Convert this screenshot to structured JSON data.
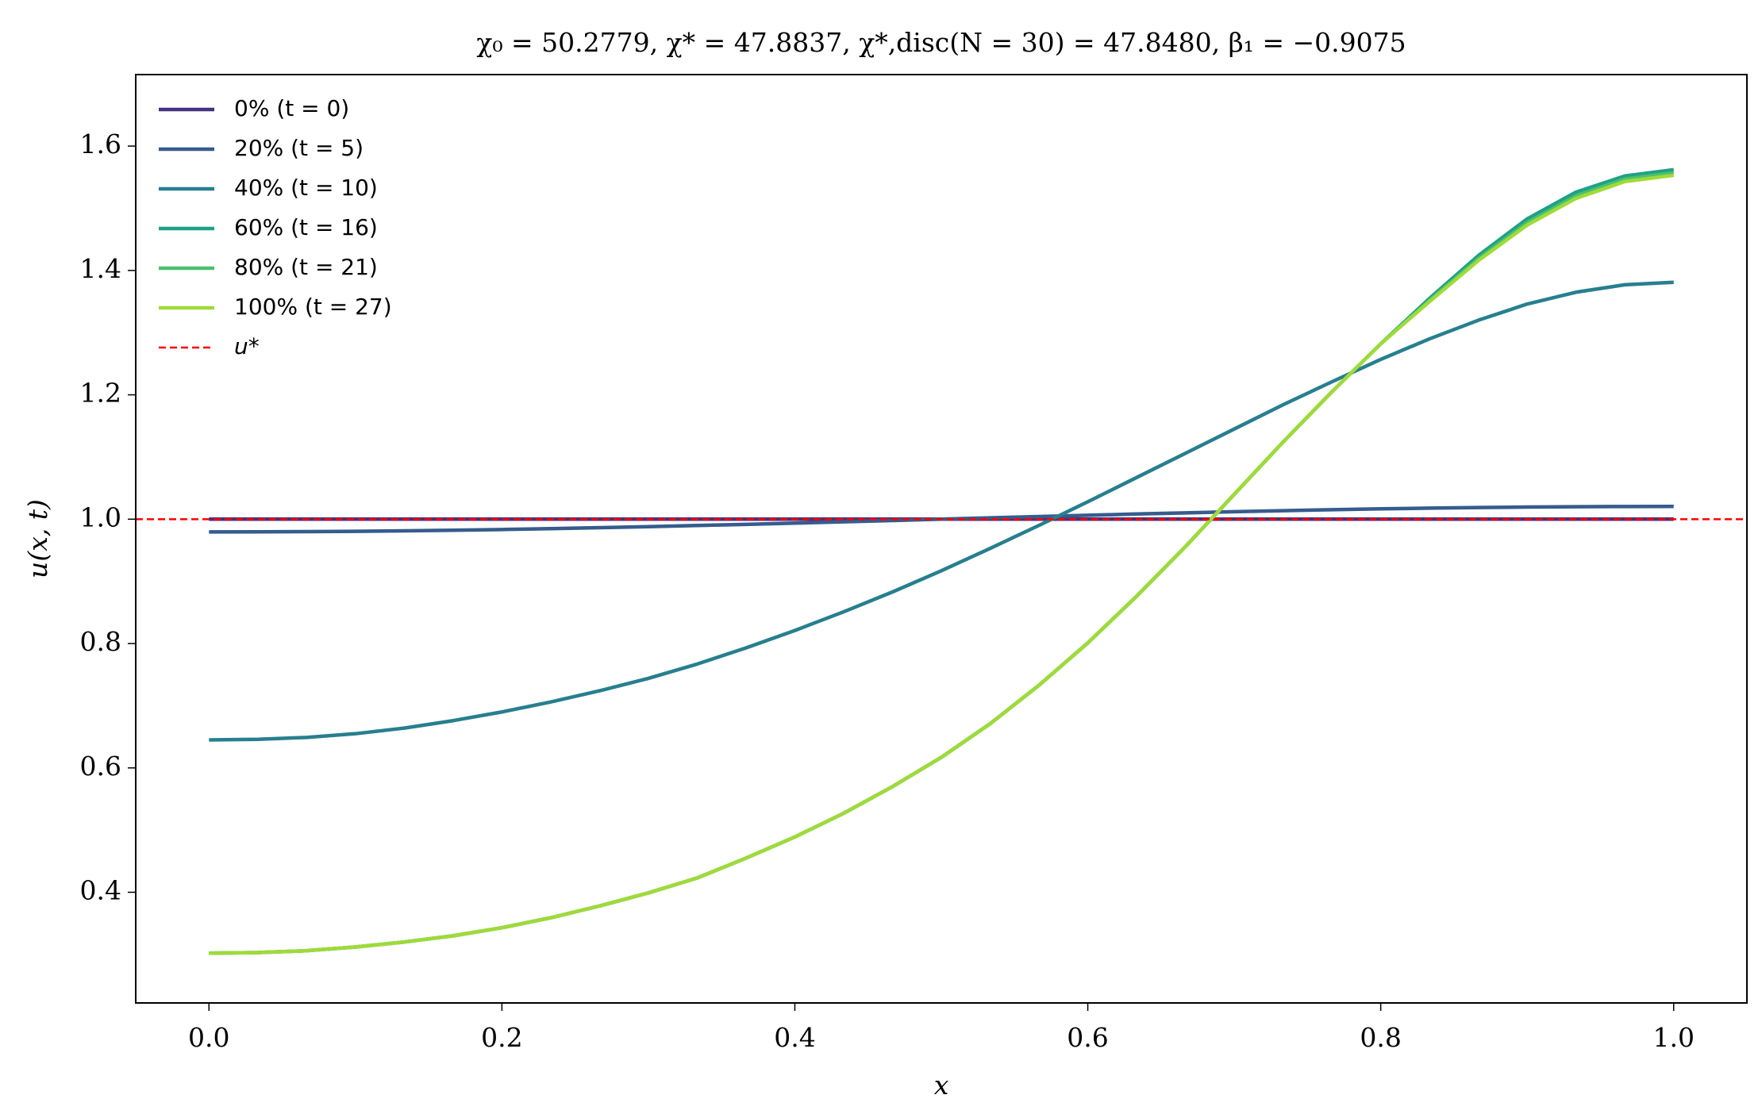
{
  "chart_data": {
    "type": "line",
    "title": "χ₀ = 50.2779,  χ* = 47.8837,  χ*,disc(N = 30) = 47.8480,  β₁ = −0.9075",
    "xlabel": "x",
    "ylabel": "u(x, t)",
    "x": [
      0,
      0.0333,
      0.0667,
      0.1,
      0.1333,
      0.1667,
      0.2,
      0.2333,
      0.2667,
      0.3,
      0.3333,
      0.3667,
      0.4,
      0.4333,
      0.4667,
      0.5,
      0.5333,
      0.5667,
      0.6,
      0.6333,
      0.6667,
      0.7,
      0.7333,
      0.7667,
      0.8,
      0.8333,
      0.8667,
      0.9,
      0.9333,
      0.9667,
      1
    ],
    "series": [
      {
        "name": "0% (t = 0)",
        "color": "#46327e",
        "values": [
          1,
          1,
          1,
          1,
          1,
          1,
          1,
          1,
          1,
          1,
          1,
          1,
          1,
          1,
          1,
          1,
          1,
          1,
          1,
          1,
          1,
          1,
          1,
          1,
          1,
          1,
          1,
          1,
          1,
          1,
          1
        ]
      },
      {
        "name": "20% (t = 5)",
        "color": "#365c8d",
        "values": [
          0.9795,
          0.9796,
          0.98,
          0.9805,
          0.9813,
          0.9822,
          0.9834,
          0.9848,
          0.9863,
          0.988,
          0.9898,
          0.9917,
          0.9937,
          0.9957,
          0.9979,
          1.0,
          1.0021,
          1.0043,
          1.0063,
          1.0083,
          1.0102,
          1.012,
          1.0137,
          1.0152,
          1.0166,
          1.0178,
          1.0187,
          1.0195,
          1.02,
          1.0204,
          1.0205
        ]
      },
      {
        "name": "40% (t = 10)",
        "color": "#277f8e",
        "values": [
          0.645,
          0.646,
          0.649,
          0.655,
          0.664,
          0.676,
          0.69,
          0.706,
          0.724,
          0.744,
          0.767,
          0.793,
          0.821,
          0.851,
          0.883,
          0.917,
          0.953,
          0.99,
          1.028,
          1.067,
          1.106,
          1.145,
          1.184,
          1.221,
          1.257,
          1.29,
          1.32,
          1.346,
          1.365,
          1.377,
          1.381
        ]
      },
      {
        "name": "60% (t = 16)",
        "color": "#1fa187",
        "values": [
          0.302,
          0.303,
          0.306,
          0.312,
          0.32,
          0.33,
          0.343,
          0.359,
          0.378,
          0.399,
          0.423,
          0.455,
          0.489,
          0.527,
          0.57,
          0.617,
          0.671,
          0.733,
          0.801,
          0.876,
          0.956,
          1.04,
          1.124,
          1.205,
          1.282,
          1.355,
          1.424,
          1.483,
          1.526,
          1.552,
          1.562
        ]
      },
      {
        "name": "80% (t = 21)",
        "color": "#4ac16d",
        "values": [
          0.302,
          0.303,
          0.306,
          0.312,
          0.32,
          0.33,
          0.343,
          0.359,
          0.378,
          0.399,
          0.423,
          0.455,
          0.489,
          0.527,
          0.57,
          0.617,
          0.671,
          0.733,
          0.801,
          0.876,
          0.956,
          1.04,
          1.124,
          1.205,
          1.282,
          1.352,
          1.419,
          1.477,
          1.52,
          1.547,
          1.557
        ]
      },
      {
        "name": "100% (t = 27)",
        "color": "#a0da39",
        "values": [
          0.302,
          0.303,
          0.306,
          0.312,
          0.32,
          0.33,
          0.343,
          0.359,
          0.378,
          0.399,
          0.423,
          0.455,
          0.489,
          0.527,
          0.57,
          0.617,
          0.671,
          0.733,
          0.801,
          0.876,
          0.956,
          1.04,
          1.124,
          1.205,
          1.282,
          1.35,
          1.416,
          1.473,
          1.516,
          1.543,
          1.553
        ]
      }
    ],
    "reference_lines": [
      {
        "name": "u*",
        "value": 1,
        "color": "#ff0000"
      }
    ],
    "xlim": [
      -0.05,
      1.05
    ],
    "ylim": [
      0.222,
      1.715
    ],
    "xticks": [
      {
        "value": 0,
        "label": "0.0"
      },
      0.2,
      0.4,
      0.6,
      0.8,
      {
        "value": 1,
        "label": "1.0"
      }
    ],
    "yticks": [
      0.4,
      0.6,
      0.8,
      {
        "value": 1,
        "label": "1.0"
      },
      1.2,
      1.4,
      1.6
    ],
    "legend": "upper left"
  }
}
